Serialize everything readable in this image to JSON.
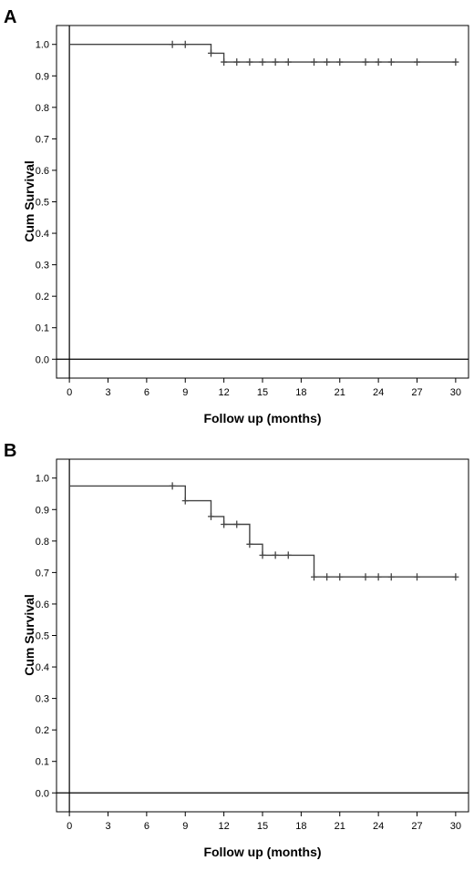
{
  "chart_data": [
    {
      "type": "line",
      "panel_label": "A",
      "xlabel": "Follow up (months)",
      "ylabel": "Cum Survival",
      "xlim": [
        -1,
        31
      ],
      "ylim": [
        -0.06,
        1.06
      ],
      "xticks": [
        0,
        3,
        6,
        9,
        12,
        15,
        18,
        21,
        24,
        27,
        30
      ],
      "yticks": [
        0.0,
        0.1,
        0.2,
        0.3,
        0.4,
        0.5,
        0.6,
        0.7,
        0.8,
        0.9,
        1.0
      ],
      "ytick_labels": [
        "0.0",
        "0.1",
        "0.2",
        "0.3",
        "0.4",
        "0.5",
        "0.6",
        "0.7",
        "0.8",
        "0.9",
        "1.0"
      ],
      "step_curve": {
        "x": [
          0,
          11,
          11,
          12,
          12,
          30
        ],
        "y": [
          1.0,
          1.0,
          0.972,
          0.972,
          0.944,
          0.944
        ]
      },
      "censor_marks": {
        "x": [
          8,
          9,
          11,
          12,
          13,
          14,
          15,
          16,
          17,
          19,
          20,
          21,
          23,
          24,
          25,
          27,
          30
        ],
        "y": [
          1.0,
          1.0,
          0.972,
          0.944,
          0.944,
          0.944,
          0.944,
          0.944,
          0.944,
          0.944,
          0.944,
          0.944,
          0.944,
          0.944,
          0.944,
          0.944,
          0.944
        ]
      }
    },
    {
      "type": "line",
      "panel_label": "B",
      "xlabel": "Follow up (months)",
      "ylabel": "Cum Survival",
      "xlim": [
        -1,
        31
      ],
      "ylim": [
        -0.06,
        1.06
      ],
      "xticks": [
        0,
        3,
        6,
        9,
        12,
        15,
        18,
        21,
        24,
        27,
        30
      ],
      "yticks": [
        0.0,
        0.1,
        0.2,
        0.3,
        0.4,
        0.5,
        0.6,
        0.7,
        0.8,
        0.9,
        1.0
      ],
      "ytick_labels": [
        "0.0",
        "0.1",
        "0.2",
        "0.3",
        "0.4",
        "0.5",
        "0.6",
        "0.7",
        "0.8",
        "0.9",
        "1.0"
      ],
      "step_curve": {
        "x": [
          0,
          9,
          9,
          11,
          11,
          12,
          12,
          14,
          14,
          15,
          15,
          19,
          19,
          30
        ],
        "y": [
          0.975,
          0.975,
          0.928,
          0.928,
          0.878,
          0.878,
          0.853,
          0.853,
          0.79,
          0.79,
          0.755,
          0.755,
          0.686,
          0.686
        ]
      },
      "censor_marks": {
        "x": [
          8,
          9,
          11,
          12,
          13,
          14,
          15,
          16,
          17,
          19,
          20,
          21,
          23,
          24,
          25,
          27,
          30
        ],
        "y": [
          0.975,
          0.928,
          0.878,
          0.853,
          0.853,
          0.79,
          0.755,
          0.755,
          0.755,
          0.686,
          0.686,
          0.686,
          0.686,
          0.686,
          0.686,
          0.686,
          0.686
        ]
      }
    }
  ]
}
